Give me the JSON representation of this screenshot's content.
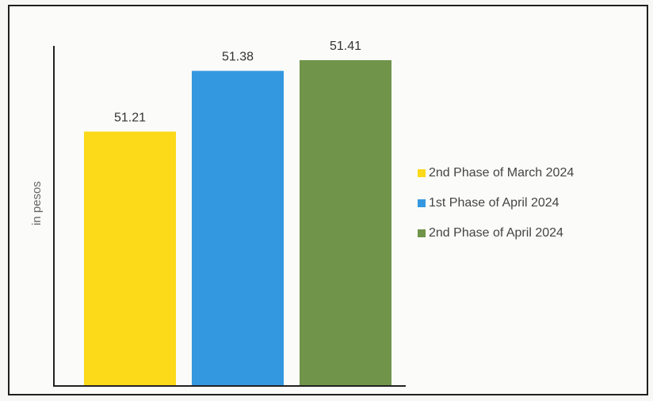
{
  "chart_data": {
    "type": "bar",
    "categories": [
      "2nd Phase of March 2024",
      "1st Phase of April 2024",
      "2nd Phase of April 2024"
    ],
    "values": [
      51.21,
      51.38,
      51.41
    ],
    "data_labels": [
      "51.21",
      "51.38",
      "51.41"
    ],
    "colors": [
      "#fcd919",
      "#3498e0",
      "#6f944a"
    ],
    "ylabel": "in pesos",
    "ylim": [
      50.5,
      51.45
    ],
    "grid": false,
    "legend_position": "right"
  }
}
